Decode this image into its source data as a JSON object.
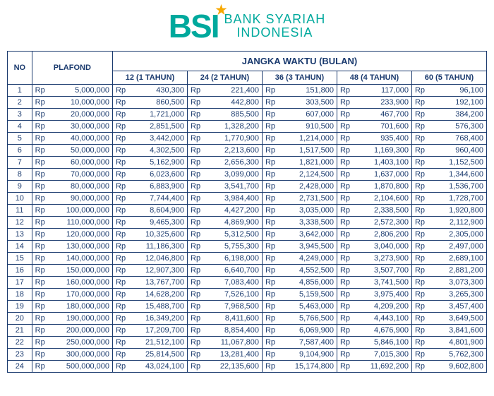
{
  "brand": {
    "logo_text": "BSI",
    "line1": "BANK SYARIAH",
    "line2": "INDONESIA",
    "brand_color": "#00a99d",
    "accent_color": "#f7a800"
  },
  "table": {
    "header_no": "NO",
    "header_plafond": "PLAFOND",
    "header_jangka": "JANGKA WAKTU (BULAN)",
    "currency": "Rp",
    "columns": [
      "12 (1 TAHUN)",
      "24 (2 TAHUN)",
      "36 (3 TAHUN)",
      "48 (4 TAHUN)",
      "60 (5 TAHUN)"
    ],
    "rows": [
      {
        "no": 1,
        "plafond": "5,000,000",
        "v": [
          "430,300",
          "221,400",
          "151,800",
          "117,000",
          "96,100"
        ]
      },
      {
        "no": 2,
        "plafond": "10,000,000",
        "v": [
          "860,500",
          "442,800",
          "303,500",
          "233,900",
          "192,100"
        ]
      },
      {
        "no": 3,
        "plafond": "20,000,000",
        "v": [
          "1,721,000",
          "885,500",
          "607,000",
          "467,700",
          "384,200"
        ]
      },
      {
        "no": 4,
        "plafond": "30,000,000",
        "v": [
          "2,851,500",
          "1,328,200",
          "910,500",
          "701,600",
          "576,300"
        ]
      },
      {
        "no": 5,
        "plafond": "40,000,000",
        "v": [
          "3,442,000",
          "1,770,900",
          "1,214,000",
          "935,400",
          "768,400"
        ]
      },
      {
        "no": 6,
        "plafond": "50,000,000",
        "v": [
          "4,302,500",
          "2,213,600",
          "1,517,500",
          "1,169,300",
          "960,400"
        ]
      },
      {
        "no": 7,
        "plafond": "60,000,000",
        "v": [
          "5,162,900",
          "2,656,300",
          "1,821,000",
          "1,403,100",
          "1,152,500"
        ]
      },
      {
        "no": 8,
        "plafond": "70,000,000",
        "v": [
          "6,023,600",
          "3,099,000",
          "2,124,500",
          "1,637,000",
          "1,344,600"
        ]
      },
      {
        "no": 9,
        "plafond": "80,000,000",
        "v": [
          "6,883,900",
          "3,541,700",
          "2,428,000",
          "1,870,800",
          "1,536,700"
        ]
      },
      {
        "no": 10,
        "plafond": "90,000,000",
        "v": [
          "7,744,400",
          "3,984,400",
          "2,731,500",
          "2,104,600",
          "1,728,700"
        ]
      },
      {
        "no": 11,
        "plafond": "100,000,000",
        "v": [
          "8,604,900",
          "4,427,200",
          "3,035,000",
          "2,338,500",
          "1,920,800"
        ]
      },
      {
        "no": 12,
        "plafond": "110,000,000",
        "v": [
          "9,465,300",
          "4,869,900",
          "3,338,500",
          "2,572,300",
          "2,112,900"
        ]
      },
      {
        "no": 13,
        "plafond": "120,000,000",
        "v": [
          "10,325,600",
          "5,312,500",
          "3,642,000",
          "2,806,200",
          "2,305,000"
        ]
      },
      {
        "no": 14,
        "plafond": "130,000,000",
        "v": [
          "11,186,300",
          "5,755,300",
          "3,945,500",
          "3,040,000",
          "2,497,000"
        ]
      },
      {
        "no": 15,
        "plafond": "140,000,000",
        "v": [
          "12,046,800",
          "6,198,000",
          "4,249,000",
          "3,273,900",
          "2,689,100"
        ]
      },
      {
        "no": 16,
        "plafond": "150,000,000",
        "v": [
          "12,907,300",
          "6,640,700",
          "4,552,500",
          "3,507,700",
          "2,881,200"
        ]
      },
      {
        "no": 17,
        "plafond": "160,000,000",
        "v": [
          "13,767,700",
          "7,083,400",
          "4,856,000",
          "3,741,500",
          "3,073,300"
        ]
      },
      {
        "no": 18,
        "plafond": "170,000,000",
        "v": [
          "14,628,200",
          "7,526,100",
          "5,159,500",
          "3,975,400",
          "3,265,300"
        ]
      },
      {
        "no": 19,
        "plafond": "180,000,000",
        "v": [
          "15,488,700",
          "7,968,500",
          "5,463,000",
          "4,209,200",
          "3,457,400"
        ]
      },
      {
        "no": 20,
        "plafond": "190,000,000",
        "v": [
          "16,349,200",
          "8,411,600",
          "5,766,500",
          "4,443,100",
          "3,649,500"
        ]
      },
      {
        "no": 21,
        "plafond": "200,000,000",
        "v": [
          "17,209,700",
          "8,854,400",
          "6,069,900",
          "4,676,900",
          "3,841,600"
        ]
      },
      {
        "no": 22,
        "plafond": "250,000,000",
        "v": [
          "21,512,100",
          "11,067,800",
          "7,587,400",
          "5,846,100",
          "4,801,900"
        ]
      },
      {
        "no": 23,
        "plafond": "300,000,000",
        "v": [
          "25,814,500",
          "13,281,400",
          "9,104,900",
          "7,015,300",
          "5,762,300"
        ]
      },
      {
        "no": 24,
        "plafond": "500,000,000",
        "v": [
          "43,024,100",
          "22,135,600",
          "15,174,800",
          "11,692,200",
          "9,602,800"
        ]
      }
    ],
    "border_color": "#1a3a6e",
    "text_color": "#1a3a6e",
    "font_size": 11
  }
}
